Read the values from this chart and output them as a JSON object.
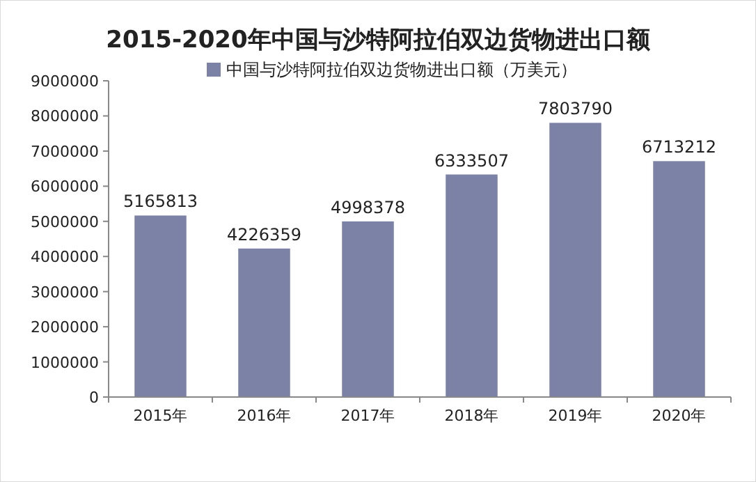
{
  "chart_data": {
    "type": "bar",
    "title": "2015-2020年中国与沙特阿拉伯双边货物进出口额",
    "categories": [
      "2015年",
      "2016年",
      "2017年",
      "2018年",
      "2019年",
      "2020年"
    ],
    "series": [
      {
        "name": "中国与沙特阿拉伯双边货物进出口额（万美元）",
        "color": "#7b82a6",
        "values": [
          5165813,
          4226359,
          4998378,
          6333507,
          7803790,
          6713212
        ]
      }
    ],
    "ylim": [
      0,
      9000000
    ],
    "yticks": [
      0,
      1000000,
      2000000,
      3000000,
      4000000,
      5000000,
      6000000,
      7000000,
      8000000,
      9000000
    ],
    "data_labels": true,
    "legend": "top",
    "grid": false
  }
}
